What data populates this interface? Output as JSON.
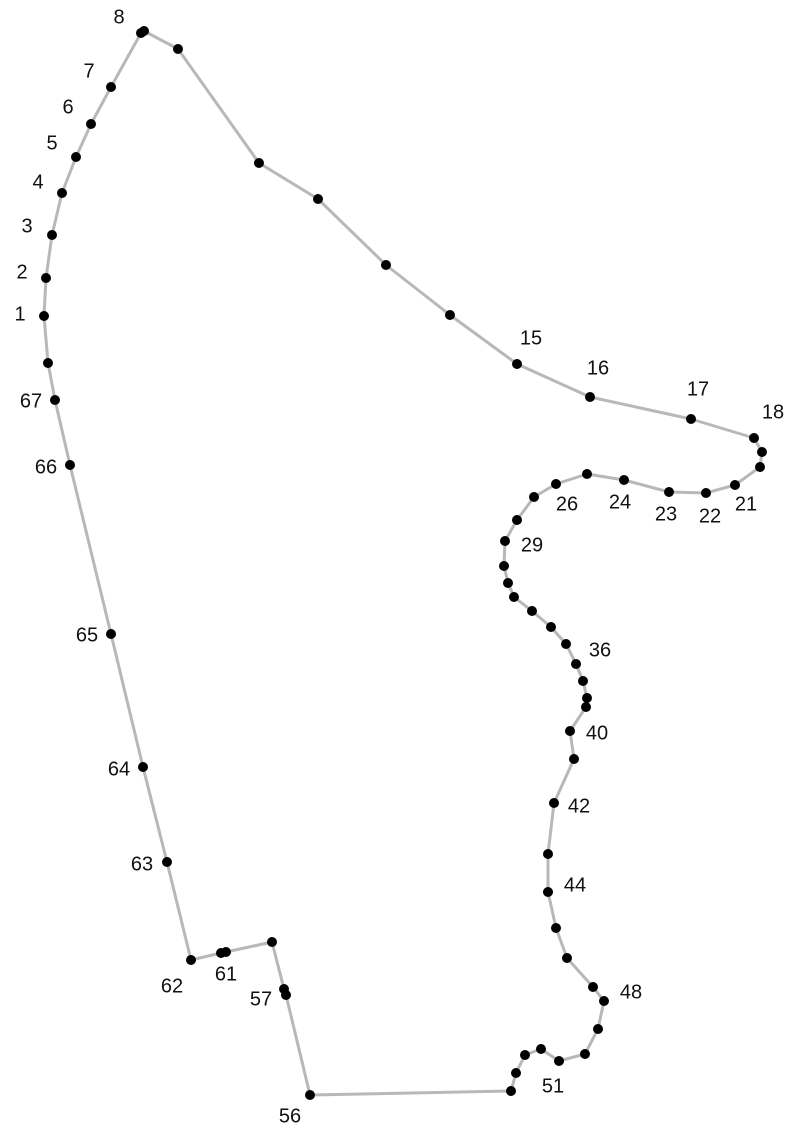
{
  "diagram": {
    "line_color": "#b8b8b8",
    "point_color": "#000000",
    "text_color": "#111111",
    "visible_labels": [
      "1",
      "2",
      "3",
      "4",
      "5",
      "6",
      "7",
      "8",
      "15",
      "16",
      "17",
      "18",
      "21",
      "22",
      "23",
      "24",
      "26",
      "29",
      "36",
      "40",
      "42",
      "44",
      "48",
      "51",
      "56",
      "57",
      "61",
      "62",
      "63",
      "64",
      "65",
      "66",
      "67"
    ]
  }
}
